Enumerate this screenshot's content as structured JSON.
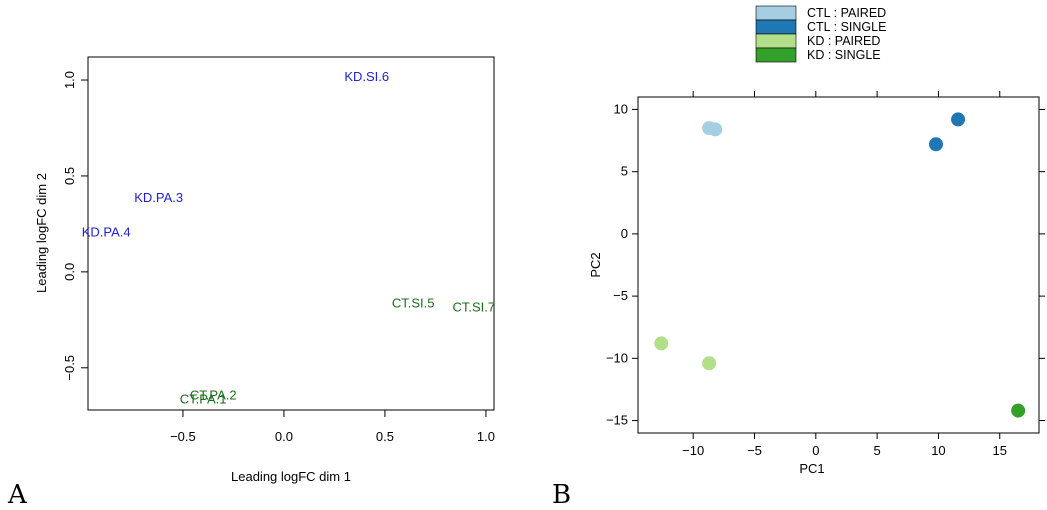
{
  "panels": {
    "a_letter": "A",
    "b_letter": "B"
  },
  "chart_data": [
    {
      "id": "mds",
      "type": "scatter",
      "title": "",
      "xlabel": "Leading logFC dim 1",
      "ylabel": "Leading logFC dim 2",
      "xlim": [
        -0.97,
        1.04
      ],
      "ylim": [
        -0.72,
        1.12
      ],
      "xticks": [
        {
          "v": -0.5,
          "label": "−0.5"
        },
        {
          "v": 0.0,
          "label": "0.0"
        },
        {
          "v": 0.5,
          "label": "0.5"
        },
        {
          "v": 1.0,
          "label": "1.0"
        }
      ],
      "yticks": [
        {
          "v": -0.5,
          "label": "−0.5"
        },
        {
          "v": 0.0,
          "label": "0.0"
        },
        {
          "v": 0.5,
          "label": "0.5"
        },
        {
          "v": 1.0,
          "label": "1.0"
        }
      ],
      "colors": {
        "KD": "#2020e0",
        "CT": "#1a6e1a"
      },
      "points": [
        {
          "label": "KD.SI.6",
          "x": 0.41,
          "y": 1.02,
          "group": "KD"
        },
        {
          "label": "KD.PA.3",
          "x": -0.62,
          "y": 0.39,
          "group": "KD"
        },
        {
          "label": "KD.PA.4",
          "x": -0.88,
          "y": 0.21,
          "group": "KD"
        },
        {
          "label": "CT.SI.5",
          "x": 0.64,
          "y": -0.16,
          "group": "CT"
        },
        {
          "label": "CT.SI.7",
          "x": 0.94,
          "y": -0.18,
          "group": "CT"
        },
        {
          "label": "CT.PA.2",
          "x": -0.35,
          "y": -0.64,
          "group": "CT"
        },
        {
          "label": "CT.PA.1",
          "x": -0.4,
          "y": -0.66,
          "group": "CT"
        }
      ]
    },
    {
      "id": "pca",
      "type": "scatter",
      "title": "",
      "xlabel": "PC1",
      "ylabel": "PC2",
      "xlim": [
        -14.5,
        18.2
      ],
      "ylim": [
        -16.0,
        11.0
      ],
      "xticks": [
        {
          "v": -10,
          "label": "−10"
        },
        {
          "v": -5,
          "label": "−5"
        },
        {
          "v": 0,
          "label": "0"
        },
        {
          "v": 5,
          "label": "5"
        },
        {
          "v": 10,
          "label": "10"
        },
        {
          "v": 15,
          "label": "15"
        }
      ],
      "yticks": [
        {
          "v": 10,
          "label": "10"
        },
        {
          "v": 5,
          "label": "5"
        },
        {
          "v": 0,
          "label": "0"
        },
        {
          "v": -5,
          "label": "−5"
        },
        {
          "v": -10,
          "label": "−10"
        },
        {
          "v": -15,
          "label": "−15"
        }
      ],
      "legend": {
        "position": "top",
        "entries": [
          {
            "name": "CTL : PAIRED",
            "color": "#a6cee3"
          },
          {
            "name": "CTL : SINGLE",
            "color": "#1f78b4"
          },
          {
            "name": "KD : PAIRED",
            "color": "#b2df8a"
          },
          {
            "name": "KD : SINGLE",
            "color": "#33a02c"
          }
        ]
      },
      "series": [
        {
          "group": "CTL : PAIRED",
          "color": "#a6cee3",
          "points": [
            {
              "x": -8.7,
              "y": 8.5
            },
            {
              "x": -8.2,
              "y": 8.4
            }
          ]
        },
        {
          "group": "CTL : SINGLE",
          "color": "#1f78b4",
          "points": [
            {
              "x": 9.8,
              "y": 7.2
            },
            {
              "x": 11.6,
              "y": 9.2
            }
          ]
        },
        {
          "group": "KD : PAIRED",
          "color": "#b2df8a",
          "points": [
            {
              "x": -12.6,
              "y": -8.8
            },
            {
              "x": -8.7,
              "y": -10.4
            }
          ]
        },
        {
          "group": "KD : SINGLE",
          "color": "#33a02c",
          "points": [
            {
              "x": 16.5,
              "y": -14.2
            }
          ]
        }
      ]
    }
  ]
}
